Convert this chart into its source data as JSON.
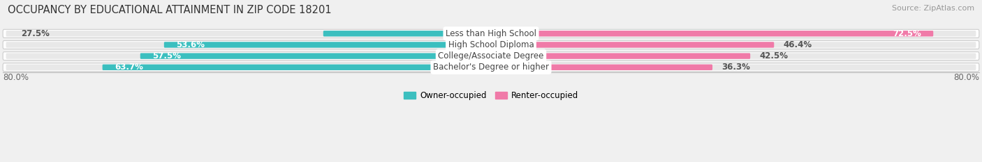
{
  "title": "OCCUPANCY BY EDUCATIONAL ATTAINMENT IN ZIP CODE 18201",
  "source": "Source: ZipAtlas.com",
  "categories": [
    "Less than High School",
    "High School Diploma",
    "College/Associate Degree",
    "Bachelor's Degree or higher"
  ],
  "owner_values": [
    27.5,
    53.6,
    57.5,
    63.7
  ],
  "renter_values": [
    72.5,
    46.4,
    42.5,
    36.3
  ],
  "owner_color": "#3bbfbf",
  "renter_color": "#f07aa8",
  "background_color": "#f0f0f0",
  "row_bg_color": "#ffffff",
  "row_border_color": "#cccccc",
  "bar_inner_bg": "#e8e8e8",
  "title_fontsize": 10.5,
  "source_fontsize": 8,
  "label_fontsize": 8.5,
  "value_fontsize": 8.5,
  "legend_fontsize": 8.5,
  "xlim": 80.0,
  "axis_label": "80.0%"
}
